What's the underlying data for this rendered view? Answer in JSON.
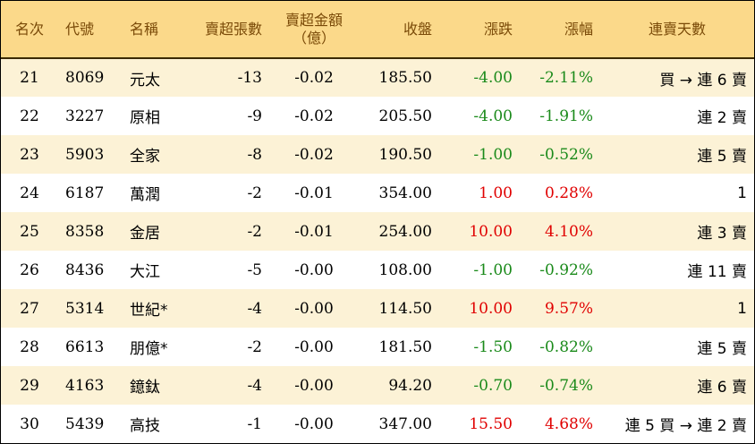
{
  "headers": {
    "rank": "名次",
    "code": "代號",
    "name": "名稱",
    "sell_lots": "賣超張數",
    "sell_amount_line1": "賣超金額",
    "sell_amount_line2": "（億）",
    "close": "收盤",
    "change": "漲跌",
    "pct": "漲幅",
    "streak": "連賣天數"
  },
  "rows": [
    {
      "rank": "21",
      "code": "8069",
      "name": "元太",
      "lots": "-13",
      "amount": "-0.02",
      "close": "185.50",
      "change": "-4.00",
      "pct": "-2.11%",
      "streak": "買 → 連 6 賣",
      "dir": "neg"
    },
    {
      "rank": "22",
      "code": "3227",
      "name": "原相",
      "lots": "-9",
      "amount": "-0.02",
      "close": "205.50",
      "change": "-4.00",
      "pct": "-1.91%",
      "streak": "連 2 賣",
      "dir": "neg"
    },
    {
      "rank": "23",
      "code": "5903",
      "name": "全家",
      "lots": "-8",
      "amount": "-0.02",
      "close": "190.50",
      "change": "-1.00",
      "pct": "-0.52%",
      "streak": "連 5 賣",
      "dir": "neg"
    },
    {
      "rank": "24",
      "code": "6187",
      "name": "萬潤",
      "lots": "-2",
      "amount": "-0.01",
      "close": "354.00",
      "change": "1.00",
      "pct": "0.28%",
      "streak": "1",
      "dir": "pos"
    },
    {
      "rank": "25",
      "code": "8358",
      "name": "金居",
      "lots": "-2",
      "amount": "-0.01",
      "close": "254.00",
      "change": "10.00",
      "pct": "4.10%",
      "streak": "連 3 賣",
      "dir": "pos"
    },
    {
      "rank": "26",
      "code": "8436",
      "name": "大江",
      "lots": "-5",
      "amount": "-0.00",
      "close": "108.00",
      "change": "-1.00",
      "pct": "-0.92%",
      "streak": "連 11 賣",
      "dir": "neg"
    },
    {
      "rank": "27",
      "code": "5314",
      "name": "世紀*",
      "lots": "-4",
      "amount": "-0.00",
      "close": "114.50",
      "change": "10.00",
      "pct": "9.57%",
      "streak": "1",
      "dir": "pos"
    },
    {
      "rank": "28",
      "code": "6613",
      "name": "朋億*",
      "lots": "-2",
      "amount": "-0.00",
      "close": "181.50",
      "change": "-1.50",
      "pct": "-0.82%",
      "streak": "連 5 賣",
      "dir": "neg"
    },
    {
      "rank": "29",
      "code": "4163",
      "name": "鐿鈦",
      "lots": "-4",
      "amount": "-0.00",
      "close": "94.20",
      "change": "-0.70",
      "pct": "-0.74%",
      "streak": "連 6 賣",
      "dir": "neg"
    },
    {
      "rank": "30",
      "code": "5439",
      "name": "高技",
      "lots": "-1",
      "amount": "-0.00",
      "close": "347.00",
      "change": "15.50",
      "pct": "4.68%",
      "streak": "連 5 買 → 連 2 賣",
      "dir": "pos"
    }
  ],
  "colors": {
    "header_bg": "#fbd98a",
    "header_text": "#7a4a08",
    "odd_row_bg": "#fcf2d6",
    "up": "#e00000",
    "down": "#1a8a1a"
  }
}
